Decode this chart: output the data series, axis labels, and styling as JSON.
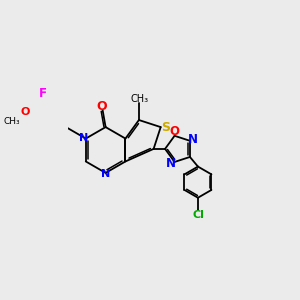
{
  "bg_color": "#ebebeb",
  "atom_colors": {
    "C": "#000000",
    "N": "#0000ff",
    "O": "#ff0000",
    "S": "#ccaa00",
    "F": "#ff00ff",
    "Cl": "#00aa00"
  },
  "bond_color": "#000000",
  "figsize": [
    3.0,
    3.0
  ],
  "dpi": 100,
  "xlim": [
    -1.5,
    8.5
  ],
  "ylim": [
    -3.5,
    3.5
  ]
}
